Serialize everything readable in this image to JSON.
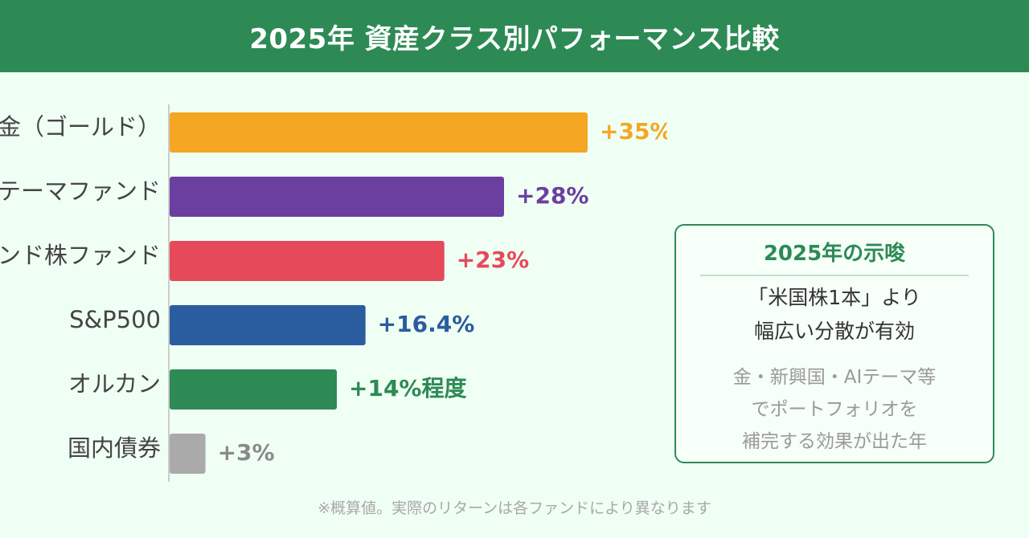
{
  "header": {
    "title": "2025年 資産クラス別パフォーマンス比較"
  },
  "chart_data": {
    "type": "bar",
    "orientation": "horizontal",
    "title": "2025年 資産クラス別パフォーマンス比較",
    "categories": [
      "金（ゴールド）",
      "AIテーマファンド",
      "インド株ファンド",
      "S&P500",
      "オルカン",
      "国内債券"
    ],
    "values": [
      35,
      28,
      23,
      16.4,
      14,
      3
    ],
    "value_labels": [
      "+35%",
      "+28%",
      "+23%",
      "+16.4%",
      "+14%程度",
      "+3%"
    ],
    "colors": [
      "#f5a623",
      "#6b3fa0",
      "#e64a5a",
      "#2a5da0",
      "#2d8a55",
      "#aaaaaa"
    ],
    "xlabel": "",
    "ylabel": "",
    "xlim": [
      0,
      35
    ],
    "grid": false
  },
  "insight": {
    "title": "2025年の示唆",
    "main_lines": [
      "「米国株1本」より",
      "幅広い分散が有効"
    ],
    "sub_lines": [
      "金・新興国・AIテーマ等",
      "でポートフォリオを",
      "補完する効果が出た年"
    ]
  },
  "footnote": "※概算値。実際のリターンは各ファンドにより異なります"
}
